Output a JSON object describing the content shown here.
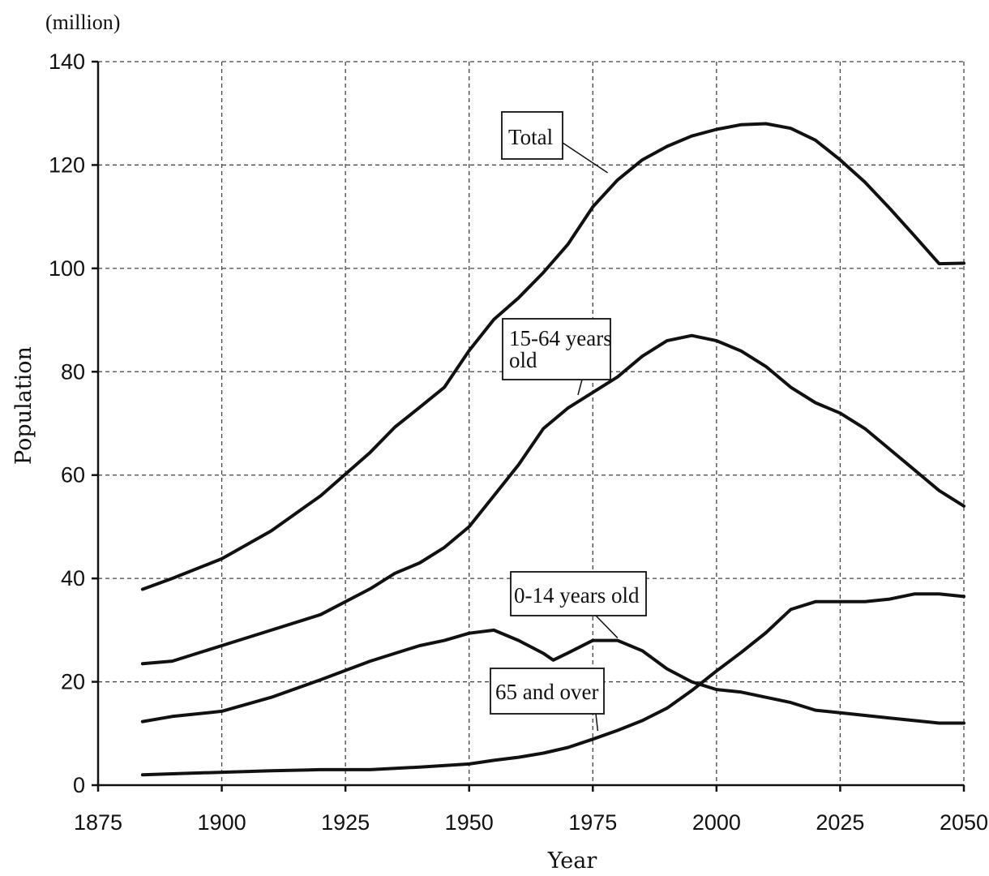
{
  "chart_data": {
    "type": "line",
    "unit_label": "(million)",
    "xlabel": "Year",
    "ylabel": "Population",
    "xlim": [
      1875,
      2050
    ],
    "ylim": [
      0,
      140
    ],
    "x_ticks": [
      1875,
      1900,
      1925,
      1950,
      1975,
      2000,
      2025,
      2050
    ],
    "x_tick_labels": [
      "1875",
      "1900",
      "1925",
      "1950",
      "1975",
      "2000",
      "2025",
      "2050"
    ],
    "y_ticks": [
      0,
      20,
      40,
      60,
      80,
      100,
      120,
      140
    ],
    "grid": true,
    "series": [
      {
        "name": "Total",
        "label_lines": [
          "Total"
        ],
        "x": [
          1884,
          1890,
          1900,
          1910,
          1920,
          1930,
          1935,
          1940,
          1945,
          1950,
          1955,
          1960,
          1965,
          1970,
          1975,
          1980,
          1985,
          1990,
          1995,
          2000,
          2005,
          2010,
          2015,
          2020,
          2025,
          2030,
          2035,
          2040,
          2045,
          2050
        ],
        "values": [
          37.9,
          40,
          43.8,
          49.2,
          56.0,
          64.4,
          69.3,
          73.1,
          77,
          84.1,
          90.1,
          94.3,
          99.2,
          104.7,
          111.9,
          117.1,
          121.0,
          123.6,
          125.6,
          126.9,
          127.8,
          128.0,
          127.1,
          124.8,
          121.0,
          116.7,
          111.6,
          106.3,
          100.9,
          101
        ]
      },
      {
        "name": "15-64 years old",
        "label_lines": [
          "15-64 years",
          "old"
        ],
        "x": [
          1884,
          1890,
          1900,
          1910,
          1920,
          1930,
          1935,
          1940,
          1945,
          1950,
          1955,
          1960,
          1965,
          1970,
          1975,
          1980,
          1985,
          1990,
          1995,
          2000,
          2005,
          2010,
          2015,
          2020,
          2025,
          2030,
          2035,
          2040,
          2045,
          2050
        ],
        "values": [
          23.5,
          24,
          27,
          30,
          33,
          38,
          41,
          43,
          46,
          50,
          56,
          62,
          69,
          73,
          76,
          79,
          83,
          86,
          87,
          86,
          84,
          81,
          77,
          74,
          72,
          69,
          65,
          61,
          57,
          54
        ]
      },
      {
        "name": "0-14 years old",
        "label_lines": [
          "0-14 years old"
        ],
        "x": [
          1884,
          1890,
          1900,
          1910,
          1920,
          1930,
          1935,
          1940,
          1945,
          1950,
          1955,
          1960,
          1965,
          1967,
          1970,
          1975,
          1980,
          1985,
          1990,
          1995,
          2000,
          2005,
          2010,
          2015,
          2020,
          2025,
          2030,
          2035,
          2040,
          2045,
          2050
        ],
        "values": [
          12.3,
          13.3,
          14.3,
          17,
          20.4,
          24,
          25.5,
          27,
          28,
          29.4,
          30,
          28,
          25.5,
          24.2,
          25.6,
          28,
          28,
          26,
          22.5,
          20,
          18.5,
          18,
          17,
          16,
          14.5,
          14,
          13.5,
          13,
          12.5,
          12,
          12
        ]
      },
      {
        "name": "65 and over",
        "label_lines": [
          "65 and over"
        ],
        "x": [
          1884,
          1890,
          1900,
          1910,
          1920,
          1930,
          1940,
          1950,
          1955,
          1960,
          1965,
          1970,
          1975,
          1980,
          1985,
          1990,
          1995,
          2000,
          2005,
          2010,
          2015,
          2020,
          2025,
          2030,
          2035,
          2040,
          2045,
          2050
        ],
        "values": [
          2,
          2.2,
          2.5,
          2.8,
          3,
          3,
          3.5,
          4.1,
          4.8,
          5.4,
          6.2,
          7.3,
          8.9,
          10.6,
          12.5,
          14.9,
          18.3,
          22.1,
          25.7,
          29.5,
          34,
          35.5,
          35.5,
          35.5,
          36,
          37,
          37,
          36.5
        ]
      }
    ]
  }
}
